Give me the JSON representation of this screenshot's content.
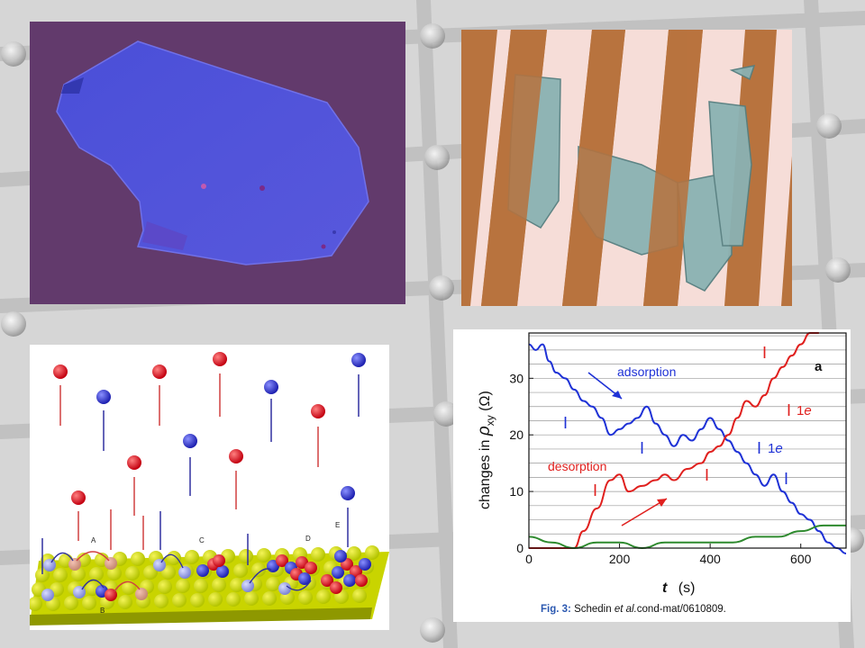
{
  "chart_data": {
    "type": "line",
    "xlabel_italic": "t",
    "xlabel_unit": "(s)",
    "ylabel_prefix": "changes in ",
    "ylabel_symbol": "ρ",
    "ylabel_sub": "xy",
    "ylabel_unit": " (Ω)",
    "xlim": [
      0,
      700
    ],
    "ylim": [
      0,
      38
    ],
    "x_ticks": [
      0,
      200,
      400,
      600
    ],
    "y_ticks": [
      0,
      10,
      20,
      30
    ],
    "panel_label": "a",
    "grid": "horizontal",
    "series": [
      {
        "color": "#1f32d6",
        "x": [
          0,
          15,
          30,
          45,
          60,
          80,
          100,
          120,
          140,
          160,
          180,
          200,
          220,
          240,
          260,
          280,
          300,
          320,
          340,
          360,
          380,
          400,
          420,
          440,
          460,
          480,
          500,
          520,
          540,
          560,
          580,
          600,
          620,
          640,
          660,
          680,
          700
        ],
        "values": [
          36,
          35,
          36,
          33,
          31,
          30,
          28,
          26,
          25,
          23,
          20,
          21,
          22,
          23,
          25,
          22,
          20,
          18,
          20,
          19,
          21,
          23,
          21,
          19,
          17,
          15,
          13,
          11,
          13,
          10,
          8,
          6,
          5,
          3,
          1,
          0,
          -1
        ]
      },
      {
        "color": "#e0201e",
        "x": [
          0,
          50,
          100,
          120,
          150,
          180,
          200,
          220,
          250,
          280,
          300,
          320,
          350,
          380,
          400,
          420,
          440,
          460,
          480,
          500,
          520,
          540,
          560,
          580,
          600,
          620,
          640
        ],
        "values": [
          0,
          0,
          0,
          3,
          7,
          12,
          13,
          10,
          11,
          12,
          13,
          12,
          14,
          15,
          17,
          18,
          20,
          23,
          26,
          25,
          27,
          30,
          32,
          34,
          36,
          38,
          40
        ]
      },
      {
        "color": "#2e8a2e",
        "x": [
          0,
          50,
          100,
          150,
          200,
          250,
          300,
          350,
          400,
          450,
          500,
          550,
          600,
          650,
          700
        ],
        "values": [
          2,
          1,
          0,
          1,
          1,
          0,
          1,
          1,
          1,
          1,
          2,
          2,
          3,
          4,
          4
        ]
      }
    ],
    "annotations": {
      "adsorption": "adsorption",
      "desorption": "desorption",
      "one_e": "1e",
      "one": "1",
      "e": "e",
      "step_mark": "I"
    }
  },
  "caption": {
    "fig": "Fig. 3:",
    "authors": "Schedin",
    "etal": "et al.",
    "ref": "cond-mat/0610809."
  },
  "schematic_labels": [
    "A",
    "B",
    "C",
    "D",
    "E"
  ]
}
